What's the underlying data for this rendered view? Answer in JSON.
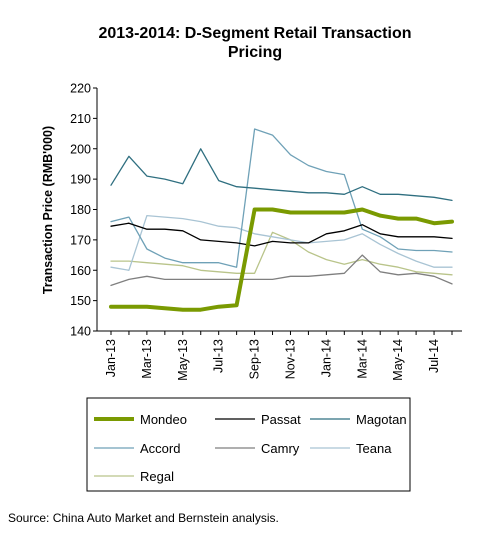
{
  "chart_data": {
    "type": "line",
    "title_line1": "2013-2014: D-Segment Retail Transaction",
    "title_line2": "Pricing",
    "ylabel": "Transaction Price (RMB'000)",
    "ylim": [
      140,
      220
    ],
    "yticks": [
      140,
      150,
      160,
      170,
      180,
      190,
      200,
      210,
      220
    ],
    "x": [
      "Jan-13",
      "Feb-13",
      "Mar-13",
      "Apr-13",
      "May-13",
      "Jun-13",
      "Jul-13",
      "Aug-13",
      "Sep-13",
      "Oct-13",
      "Nov-13",
      "Dec-13",
      "Jan-14",
      "Feb-14",
      "Mar-14",
      "Apr-14",
      "May-14",
      "Jun-14",
      "Jul-14",
      "Aug-14"
    ],
    "xtick_labels": [
      "Jan-13",
      "Mar-13",
      "May-13",
      "Jul-13",
      "Sep-13",
      "Nov-13",
      "Jan-14",
      "Mar-14",
      "May-14",
      "Jul-14"
    ],
    "grid": false,
    "legend_position": "bottom",
    "series": [
      {
        "name": "Mondeo",
        "color": "#7a9a01",
        "width": 4,
        "values": [
          148,
          148,
          148,
          147.5,
          147,
          147,
          148,
          148.5,
          180,
          180,
          179,
          179,
          179,
          179,
          180,
          178,
          177,
          177,
          175.5,
          176
        ]
      },
      {
        "name": "Passat",
        "color": "#000000",
        "width": 1.3,
        "values": [
          174.5,
          175.5,
          173.5,
          173.5,
          173,
          170,
          169.5,
          169,
          168,
          169.5,
          169,
          169,
          172,
          173,
          175,
          172,
          171,
          171,
          171,
          170.5
        ]
      },
      {
        "name": "Magotan",
        "color": "#2f6f80",
        "width": 1.3,
        "values": [
          188,
          197.5,
          191,
          190,
          188.5,
          200,
          189.5,
          187.5,
          187,
          186.5,
          186,
          185.5,
          185.5,
          185,
          187.5,
          185,
          185,
          184.5,
          184,
          183
        ]
      },
      {
        "name": "Accord",
        "color": "#6fa1b7",
        "width": 1.3,
        "values": [
          176,
          177.5,
          167,
          164,
          162.5,
          162.5,
          162.5,
          161,
          206.5,
          204.5,
          198,
          194.5,
          192.5,
          191.5,
          173.5,
          171,
          167,
          166.5,
          166.5,
          166
        ]
      },
      {
        "name": "Camry",
        "color": "#7f7f7f",
        "width": 1.3,
        "values": [
          155,
          157,
          158,
          157,
          157,
          157,
          157,
          157,
          157,
          157,
          158,
          158,
          158.5,
          159,
          165,
          159.5,
          158.5,
          159,
          158,
          155.5
        ]
      },
      {
        "name": "Teana",
        "color": "#a9c4d4",
        "width": 1.3,
        "values": [
          161,
          160,
          178,
          177.5,
          177,
          176,
          174.5,
          174,
          172,
          171,
          170,
          169,
          169.5,
          170,
          172,
          168.5,
          165.5,
          163,
          161,
          161
        ]
      },
      {
        "name": "Regal",
        "color": "#b9c48a",
        "width": 1.3,
        "values": [
          163,
          163,
          162.5,
          162,
          161.5,
          160,
          159.5,
          159,
          159,
          172.5,
          170,
          166,
          163.5,
          162,
          163.5,
          162,
          161,
          159.5,
          159,
          158.5
        ]
      }
    ],
    "source": "Source: China Auto Market and Bernstein analysis."
  }
}
